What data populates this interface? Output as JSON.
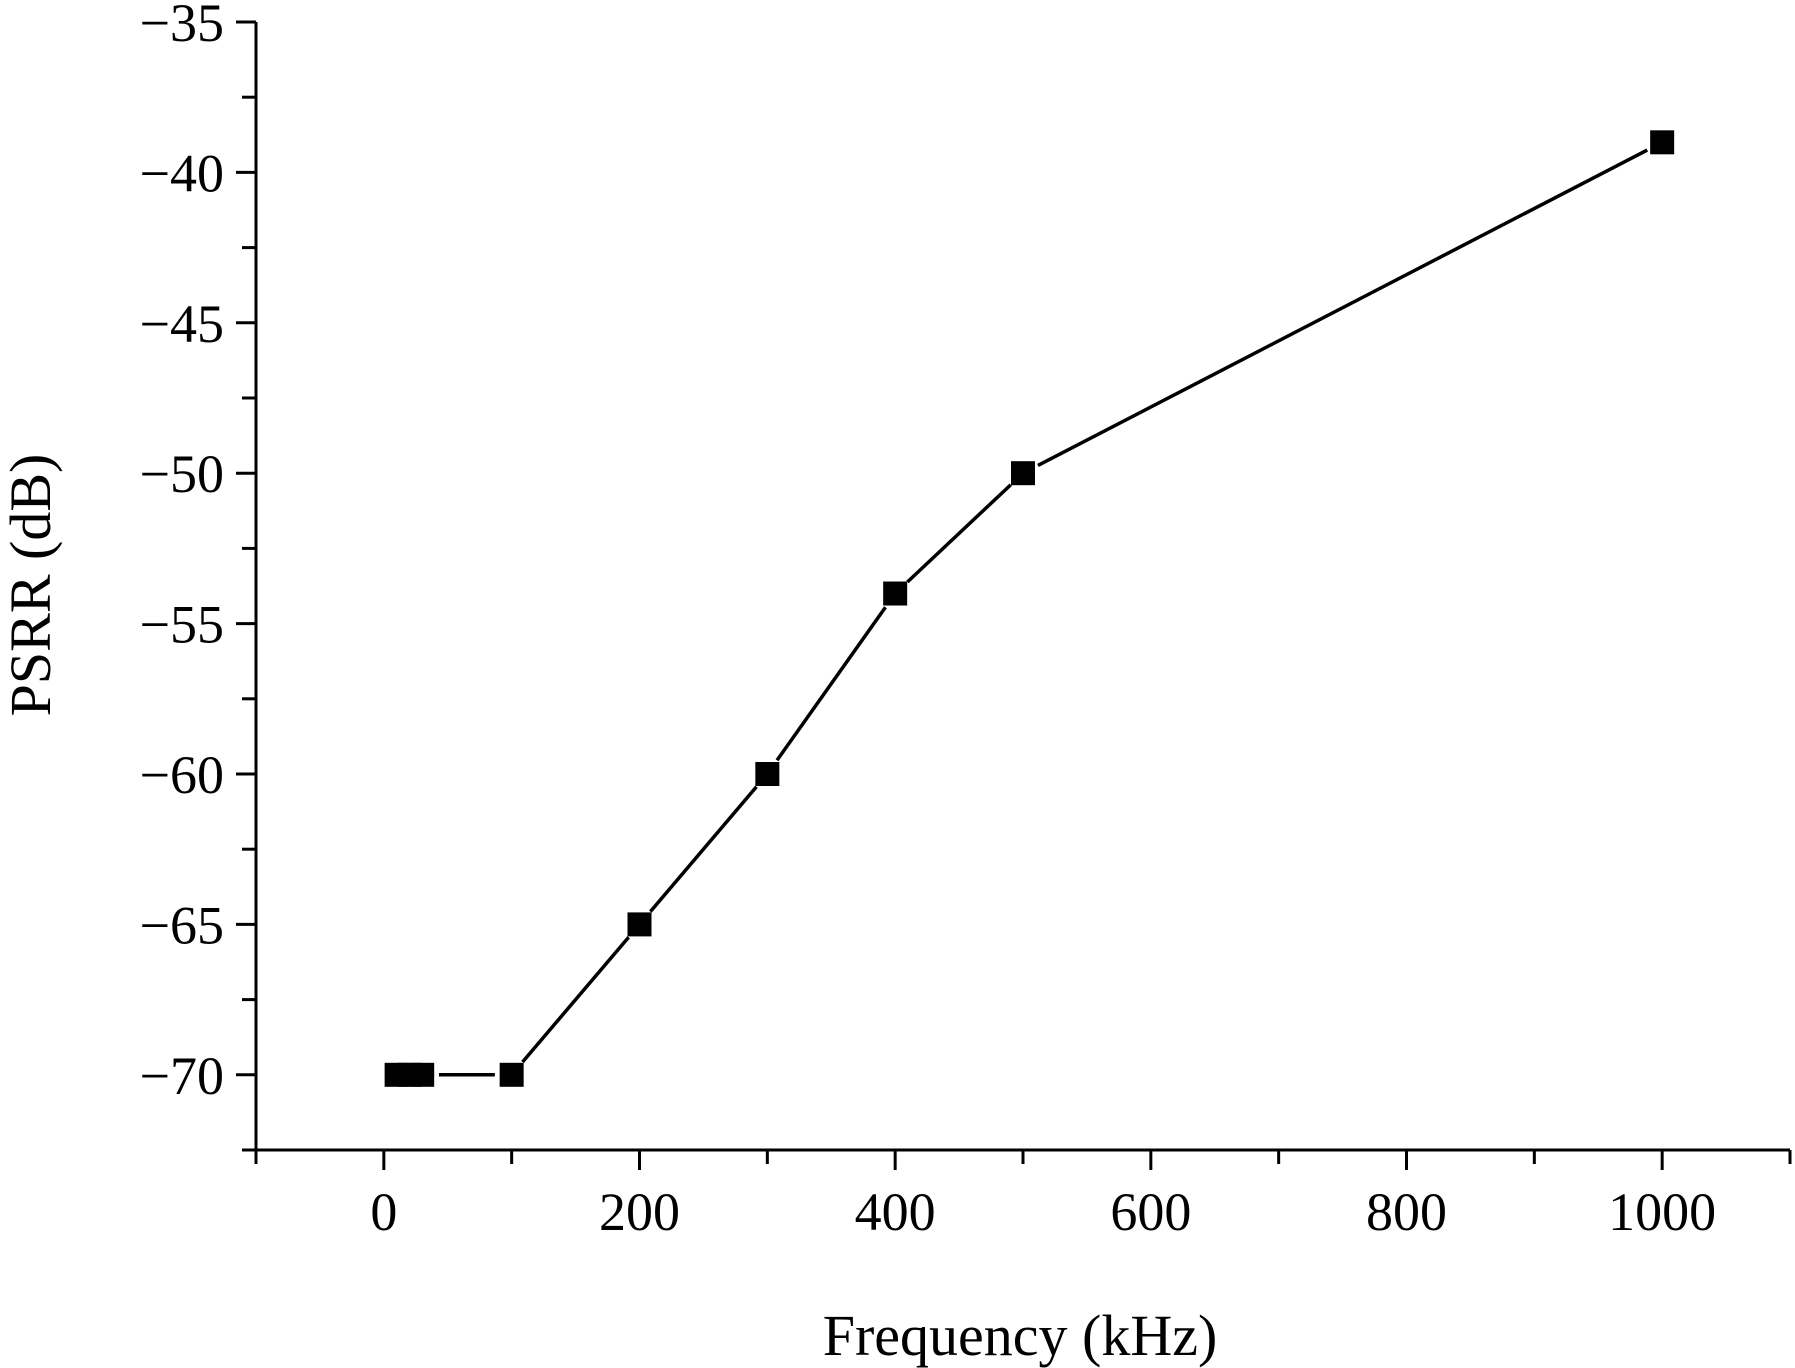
{
  "chart_data": {
    "type": "line",
    "title": "",
    "xlabel": "Frequency (kHz)",
    "ylabel": "PSRR (dB)",
    "xlim": [
      -100,
      1100
    ],
    "ylim": [
      -72.5,
      -35
    ],
    "xticks": [
      0,
      200,
      400,
      600,
      800,
      1000
    ],
    "xtick_labels": [
      "0",
      "200",
      "400",
      "600",
      "800",
      "1000"
    ],
    "xminor_step": 100,
    "yticks": [
      -70,
      -65,
      -60,
      -55,
      -50,
      -45,
      -40,
      -35
    ],
    "ytick_labels": [
      "−70",
      "−65",
      "−60",
      "−55",
      "−50",
      "−45",
      "−40",
      "−35"
    ],
    "yminor_step": 2.5,
    "grid": false,
    "legend": "none",
    "series": [
      {
        "marker": "square",
        "color": "#000000",
        "points": [
          {
            "x": 10,
            "y": -70
          },
          {
            "x": 20,
            "y": -70
          },
          {
            "x": 30,
            "y": -70
          },
          {
            "x": 100,
            "y": -70
          },
          {
            "x": 200,
            "y": -65
          },
          {
            "x": 300,
            "y": -60
          },
          {
            "x": 400,
            "y": -54
          },
          {
            "x": 500,
            "y": -50
          },
          {
            "x": 1000,
            "y": -39
          }
        ]
      }
    ]
  }
}
